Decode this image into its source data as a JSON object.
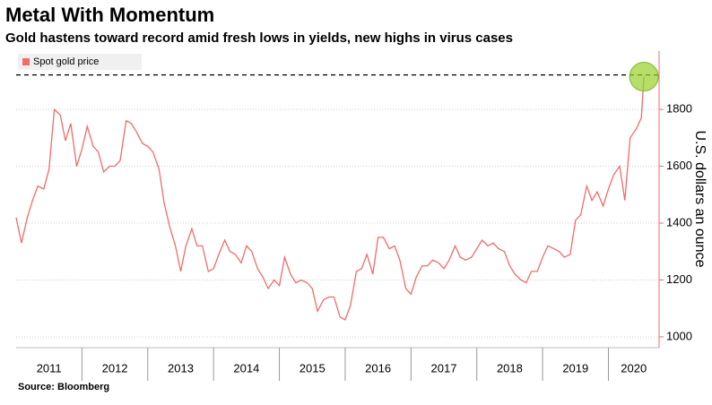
{
  "chart_data": {
    "type": "line",
    "title": "Metal With Momentum",
    "subtitle": "Gold hastens toward record amid fresh lows in yields, new highs in virus cases",
    "y_label": "U.S. dollars an ounce",
    "source": "Source: Bloomberg",
    "x": [
      2011.0,
      2011.08,
      2011.17,
      2011.25,
      2011.33,
      2011.42,
      2011.5,
      2011.58,
      2011.67,
      2011.75,
      2011.83,
      2011.92,
      2012.0,
      2012.08,
      2012.17,
      2012.25,
      2012.33,
      2012.42,
      2012.5,
      2012.58,
      2012.67,
      2012.75,
      2012.83,
      2012.92,
      2013.0,
      2013.08,
      2013.17,
      2013.25,
      2013.33,
      2013.42,
      2013.5,
      2013.58,
      2013.67,
      2013.75,
      2013.83,
      2013.92,
      2014.0,
      2014.08,
      2014.17,
      2014.25,
      2014.33,
      2014.42,
      2014.5,
      2014.58,
      2014.67,
      2014.75,
      2014.83,
      2014.92,
      2015.0,
      2015.08,
      2015.17,
      2015.25,
      2015.33,
      2015.42,
      2015.5,
      2015.58,
      2015.67,
      2015.75,
      2015.83,
      2015.92,
      2016.0,
      2016.08,
      2016.17,
      2016.25,
      2016.33,
      2016.42,
      2016.5,
      2016.58,
      2016.67,
      2016.75,
      2016.83,
      2016.92,
      2017.0,
      2017.08,
      2017.17,
      2017.25,
      2017.33,
      2017.42,
      2017.5,
      2017.58,
      2017.67,
      2017.75,
      2017.83,
      2017.92,
      2018.0,
      2018.08,
      2018.17,
      2018.25,
      2018.33,
      2018.42,
      2018.5,
      2018.58,
      2018.67,
      2018.75,
      2018.83,
      2018.92,
      2019.0,
      2019.08,
      2019.17,
      2019.25,
      2019.33,
      2019.42,
      2019.5,
      2019.58,
      2019.67,
      2019.75,
      2019.83,
      2019.92,
      2020.0,
      2020.08,
      2020.17,
      2020.25,
      2020.33,
      2020.42,
      2020.5,
      2020.54
    ],
    "series": [
      {
        "name": "Spot gold price",
        "color": "#f26b6b",
        "values": [
          1420,
          1330,
          1420,
          1480,
          1530,
          1520,
          1590,
          1800,
          1780,
          1690,
          1750,
          1600,
          1660,
          1740,
          1670,
          1650,
          1580,
          1600,
          1600,
          1620,
          1760,
          1750,
          1720,
          1680,
          1670,
          1650,
          1590,
          1470,
          1390,
          1320,
          1230,
          1320,
          1380,
          1320,
          1320,
          1230,
          1240,
          1290,
          1340,
          1300,
          1290,
          1260,
          1320,
          1300,
          1240,
          1210,
          1170,
          1200,
          1180,
          1280,
          1220,
          1190,
          1200,
          1190,
          1170,
          1090,
          1130,
          1140,
          1140,
          1070,
          1060,
          1110,
          1230,
          1240,
          1290,
          1220,
          1350,
          1350,
          1310,
          1320,
          1270,
          1170,
          1150,
          1210,
          1250,
          1250,
          1270,
          1260,
          1240,
          1270,
          1320,
          1280,
          1270,
          1280,
          1310,
          1340,
          1320,
          1330,
          1310,
          1300,
          1250,
          1220,
          1200,
          1190,
          1230,
          1230,
          1280,
          1320,
          1310,
          1300,
          1280,
          1290,
          1410,
          1430,
          1530,
          1480,
          1510,
          1460,
          1520,
          1570,
          1600,
          1480,
          1700,
          1730,
          1770,
          1915
        ]
      }
    ],
    "record_high": 1921,
    "xlim": [
      2011,
      2020.77
    ],
    "xticks": [
      2011,
      2012,
      2013,
      2014,
      2015,
      2016,
      2017,
      2018,
      2019,
      2020
    ],
    "ylim": [
      962,
      2005
    ],
    "yticks": [
      1000,
      1200,
      1400,
      1600,
      1800
    ],
    "grid": true,
    "legend": "top-left"
  }
}
